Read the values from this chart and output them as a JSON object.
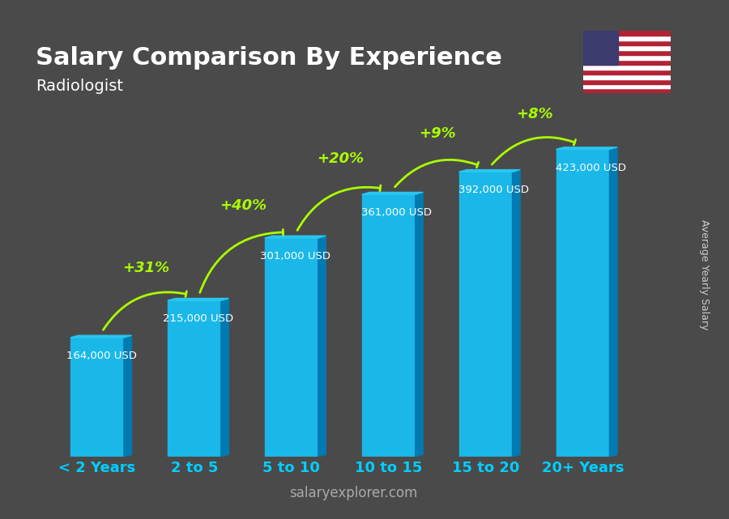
{
  "title": "Salary Comparison By Experience",
  "subtitle": "Radiologist",
  "categories": [
    "< 2 Years",
    "2 to 5",
    "5 to 10",
    "10 to 15",
    "15 to 20",
    "20+ Years"
  ],
  "values": [
    164000,
    215000,
    301000,
    361000,
    392000,
    423000
  ],
  "labels": [
    "164,000 USD",
    "215,000 USD",
    "301,000 USD",
    "361,000 USD",
    "392,000 USD",
    "423,000 USD"
  ],
  "pct_changes": [
    "+31%",
    "+40%",
    "+20%",
    "+9%",
    "+8%"
  ],
  "bar_color_top": "#29c6f0",
  "bar_color_mid": "#00aadd",
  "bar_color_side": "#007ab0",
  "bg_color": "#4a4a4a",
  "title_color": "#ffffff",
  "subtitle_color": "#ffffff",
  "label_color": "#ffffff",
  "pct_color": "#aaff00",
  "xlabel_color": "#00cfff",
  "watermark": "salaryexplorer.com",
  "ylabel_text": "Average Yearly Salary",
  "ylim": [
    0,
    500000
  ],
  "bar_width": 0.55
}
